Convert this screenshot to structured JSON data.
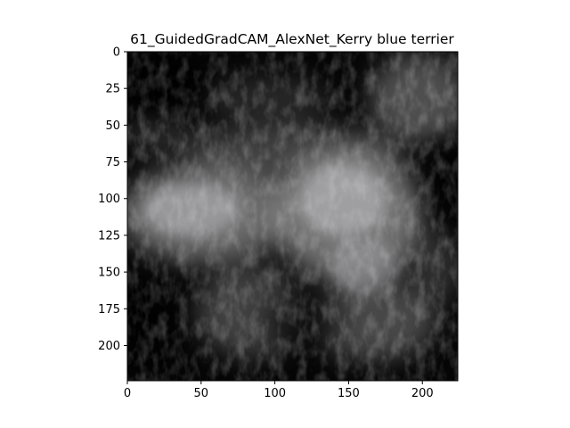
{
  "figure": {
    "title": "61_GuidedGradCAM_AlexNet_Kerry blue terrier"
  },
  "chart_data": {
    "type": "heatmap",
    "title": "61_GuidedGradCAM_AlexNet_Kerry blue terrier",
    "xlabel": "",
    "ylabel": "",
    "xlim": [
      0,
      224
    ],
    "ylim": [
      224,
      0
    ],
    "x_ticks": [
      "0",
      "50",
      "100",
      "150",
      "200"
    ],
    "y_ticks": [
      "0",
      "25",
      "50",
      "75",
      "100",
      "125",
      "150",
      "175",
      "200"
    ],
    "grid": false
  }
}
